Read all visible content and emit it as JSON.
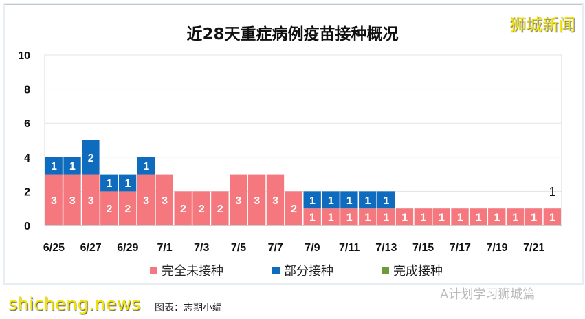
{
  "brand": "狮城新闻",
  "watermark": "shicheng.news",
  "caption": "图表：志期小编",
  "wechat": "A计划学习狮城篇",
  "chart_data": {
    "type": "bar",
    "stacked": true,
    "title": "近28天重症病例疫苗接种概况",
    "ylim": [
      0,
      10
    ],
    "yticks": [
      0,
      2,
      4,
      6,
      8,
      10
    ],
    "grid": true,
    "legend_position": "bottom",
    "categories": [
      "6/25",
      "6/26",
      "6/27",
      "6/28",
      "6/29",
      "6/30",
      "7/1",
      "7/2",
      "7/3",
      "7/4",
      "7/5",
      "7/6",
      "7/7",
      "7/8",
      "7/9",
      "7/10",
      "7/11",
      "7/12",
      "7/13",
      "7/14",
      "7/15",
      "7/16",
      "7/17",
      "7/18",
      "7/19",
      "7/20",
      "7/21",
      "7/22"
    ],
    "xtick_labels": [
      "6/25",
      "6/27",
      "6/29",
      "7/1",
      "7/3",
      "7/5",
      "7/7",
      "7/9",
      "7/11",
      "7/13",
      "7/15",
      "7/17",
      "7/19",
      "7/21"
    ],
    "series": [
      {
        "name": "完全未接种",
        "color": "#f4787d",
        "values": [
          3,
          3,
          3,
          2,
          2,
          3,
          3,
          2,
          2,
          2,
          3,
          3,
          3,
          2,
          1,
          1,
          1,
          1,
          1,
          1,
          1,
          1,
          1,
          1,
          1,
          1,
          1,
          1
        ]
      },
      {
        "name": "部分接种",
        "color": "#0f6bbd",
        "values": [
          1,
          1,
          2,
          1,
          1,
          1,
          0,
          0,
          0,
          0,
          0,
          0,
          0,
          0,
          1,
          1,
          1,
          1,
          1,
          0,
          0,
          0,
          0,
          0,
          0,
          0,
          0,
          0
        ]
      },
      {
        "name": "完成接种",
        "color": "#6f9a3a",
        "values": [
          0,
          0,
          0,
          0,
          0,
          0,
          0,
          0,
          0,
          0,
          0,
          0,
          0,
          0,
          0,
          0,
          0,
          0,
          0,
          0,
          0,
          0,
          0,
          0,
          0,
          0,
          0,
          0
        ]
      }
    ],
    "annotations": [
      {
        "category": "7/22",
        "text": "1"
      }
    ]
  }
}
